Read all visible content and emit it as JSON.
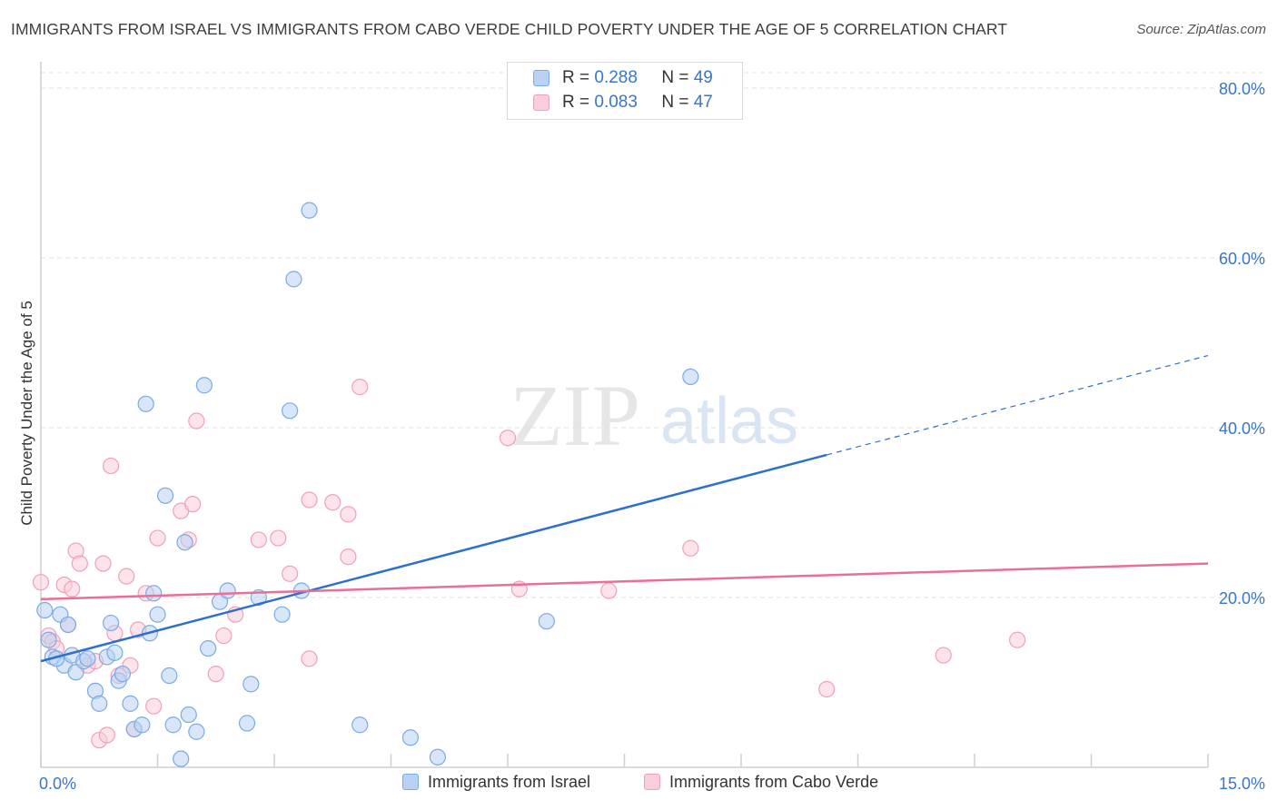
{
  "title": "IMMIGRANTS FROM ISRAEL VS IMMIGRANTS FROM CABO VERDE CHILD POVERTY UNDER THE AGE OF 5 CORRELATION CHART",
  "source": "Source: ZipAtlas.com",
  "watermark": {
    "zip": "ZIP",
    "atlas": "atlas"
  },
  "legend": {
    "rows": [
      {
        "r_label": "R =",
        "r_value": "0.288",
        "n_label": "N =",
        "n_value": "49"
      },
      {
        "r_label": "R =",
        "r_value": "0.083",
        "n_label": "N =",
        "n_value": "47"
      }
    ]
  },
  "chart_data": {
    "type": "scatter",
    "title": "IMMIGRANTS FROM ISRAEL VS IMMIGRANTS FROM CABO VERDE CHILD POVERTY UNDER THE AGE OF 5 CORRELATION CHART",
    "xlabel": "",
    "ylabel": "Child Poverty Under the Age of 5",
    "xlim": [
      0,
      15
    ],
    "ylim": [
      0,
      80
    ],
    "x_tick_labels": [
      "0.0%",
      "15.0%"
    ],
    "y_ticks": [
      20,
      40,
      60,
      80
    ],
    "y_tick_labels": [
      "20.0%",
      "40.0%",
      "60.0%",
      "80.0%"
    ],
    "grid": true,
    "legend_position": "top-center",
    "series": [
      {
        "name": "Immigrants from Israel",
        "color": "#7aaae6",
        "fill": "#b9d2f3",
        "line_color": "#2f6fcc",
        "R": 0.288,
        "N": 49,
        "trend": {
          "x0": 0,
          "y0": 12.5,
          "x1": 10.1,
          "y1": 36.8,
          "dashed_to_x": 15,
          "dashed_to_y": 48.5
        },
        "points": [
          [
            0.05,
            18.5
          ],
          [
            0.1,
            15.0
          ],
          [
            0.15,
            13.0
          ],
          [
            0.25,
            18.0
          ],
          [
            0.3,
            12.0
          ],
          [
            0.35,
            16.8
          ],
          [
            0.4,
            13.2
          ],
          [
            0.45,
            11.2
          ],
          [
            0.55,
            12.5
          ],
          [
            0.6,
            12.8
          ],
          [
            0.7,
            9.0
          ],
          [
            0.75,
            7.5
          ],
          [
            0.85,
            13.0
          ],
          [
            0.9,
            17.0
          ],
          [
            0.95,
            13.5
          ],
          [
            1.0,
            10.2
          ],
          [
            1.05,
            11.0
          ],
          [
            1.15,
            7.5
          ],
          [
            1.2,
            4.5
          ],
          [
            1.3,
            5.0
          ],
          [
            1.35,
            42.8
          ],
          [
            1.4,
            15.8
          ],
          [
            1.45,
            20.5
          ],
          [
            1.5,
            18.0
          ],
          [
            1.6,
            32.0
          ],
          [
            1.65,
            10.8
          ],
          [
            1.7,
            5.0
          ],
          [
            1.8,
            1.0
          ],
          [
            1.85,
            26.5
          ],
          [
            1.9,
            6.2
          ],
          [
            2.0,
            4.2
          ],
          [
            2.1,
            45.0
          ],
          [
            2.15,
            14.0
          ],
          [
            2.3,
            19.5
          ],
          [
            2.4,
            20.8
          ],
          [
            2.65,
            5.2
          ],
          [
            2.7,
            9.8
          ],
          [
            2.8,
            20.0
          ],
          [
            3.1,
            18.0
          ],
          [
            3.2,
            42.0
          ],
          [
            3.25,
            57.5
          ],
          [
            3.35,
            20.8
          ],
          [
            3.45,
            65.6
          ],
          [
            4.1,
            5.0
          ],
          [
            4.75,
            3.5
          ],
          [
            5.1,
            1.2
          ],
          [
            6.5,
            17.2
          ],
          [
            8.35,
            46.0
          ],
          [
            0.2,
            12.8
          ]
        ]
      },
      {
        "name": "Immigrants from Cabo Verde",
        "color": "#f0a0b8",
        "fill": "#f9cdd9",
        "line_color": "#e86f98",
        "R": 0.083,
        "N": 47,
        "trend": {
          "x0": 0,
          "y0": 19.8,
          "x1": 15,
          "y1": 24.0
        },
        "points": [
          [
            0.0,
            21.8
          ],
          [
            0.1,
            15.5
          ],
          [
            0.15,
            14.8
          ],
          [
            0.2,
            14.0
          ],
          [
            0.3,
            21.5
          ],
          [
            0.35,
            16.8
          ],
          [
            0.4,
            21.0
          ],
          [
            0.45,
            25.5
          ],
          [
            0.5,
            24.0
          ],
          [
            0.6,
            12.0
          ],
          [
            0.7,
            12.5
          ],
          [
            0.75,
            3.2
          ],
          [
            0.8,
            24.0
          ],
          [
            0.85,
            3.8
          ],
          [
            0.9,
            35.5
          ],
          [
            0.95,
            15.8
          ],
          [
            1.0,
            10.8
          ],
          [
            1.1,
            22.5
          ],
          [
            1.15,
            12.0
          ],
          [
            1.2,
            4.5
          ],
          [
            1.25,
            16.2
          ],
          [
            1.35,
            20.5
          ],
          [
            1.45,
            7.2
          ],
          [
            1.5,
            27.0
          ],
          [
            1.8,
            30.2
          ],
          [
            1.9,
            26.8
          ],
          [
            1.95,
            31.0
          ],
          [
            2.0,
            40.8
          ],
          [
            2.25,
            11.0
          ],
          [
            2.35,
            15.5
          ],
          [
            2.5,
            18.0
          ],
          [
            2.8,
            26.8
          ],
          [
            3.05,
            27.0
          ],
          [
            3.2,
            22.8
          ],
          [
            3.45,
            12.8
          ],
          [
            3.45,
            31.5
          ],
          [
            3.75,
            31.2
          ],
          [
            3.95,
            29.8
          ],
          [
            3.95,
            24.8
          ],
          [
            4.1,
            44.8
          ],
          [
            6.0,
            38.8
          ],
          [
            6.15,
            21.0
          ],
          [
            7.3,
            20.8
          ],
          [
            8.35,
            25.8
          ],
          [
            10.1,
            9.2
          ],
          [
            11.6,
            13.2
          ],
          [
            12.55,
            15.0
          ]
        ]
      }
    ]
  }
}
